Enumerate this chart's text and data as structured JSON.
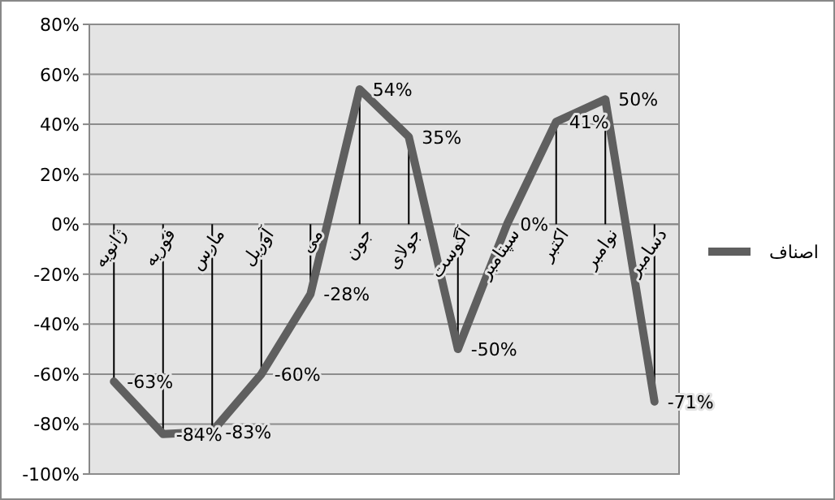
{
  "chart_data": {
    "type": "line",
    "categories": [
      "ژانویه",
      "فوریه",
      "مارس",
      "آوریل",
      "می",
      "جون",
      "جولای",
      "آگوست",
      "سپتامبر",
      "اکتبر",
      "نوامبر",
      "دسامبر"
    ],
    "series": [
      {
        "name": "اصناف",
        "color": "#5f5f5f",
        "values": [
          -63,
          -84,
          -83,
          -60,
          -28,
          54,
          35,
          -50,
          0,
          41,
          50,
          -71
        ],
        "value_labels": [
          "-63%",
          "-84%",
          "-83%",
          "-60%",
          "-28%",
          "54%",
          "35%",
          "-50%",
          "0%",
          "41%",
          "50%",
          "-71%"
        ]
      }
    ],
    "ylim": [
      -100,
      80
    ],
    "yticks": [
      {
        "value": 80,
        "label": "80%"
      },
      {
        "value": 60,
        "label": "60%"
      },
      {
        "value": 40,
        "label": "40%"
      },
      {
        "value": 20,
        "label": "20%"
      },
      {
        "value": 0,
        "label": "0%"
      },
      {
        "value": -20,
        "label": "-20%"
      },
      {
        "value": -40,
        "label": "-40%"
      },
      {
        "value": -60,
        "label": "-60%"
      },
      {
        "value": -80,
        "label": "-80%"
      },
      {
        "value": -100,
        "label": "-100%"
      }
    ],
    "grid": "y",
    "legend": "right",
    "marker": "none",
    "line_style": "solid"
  }
}
